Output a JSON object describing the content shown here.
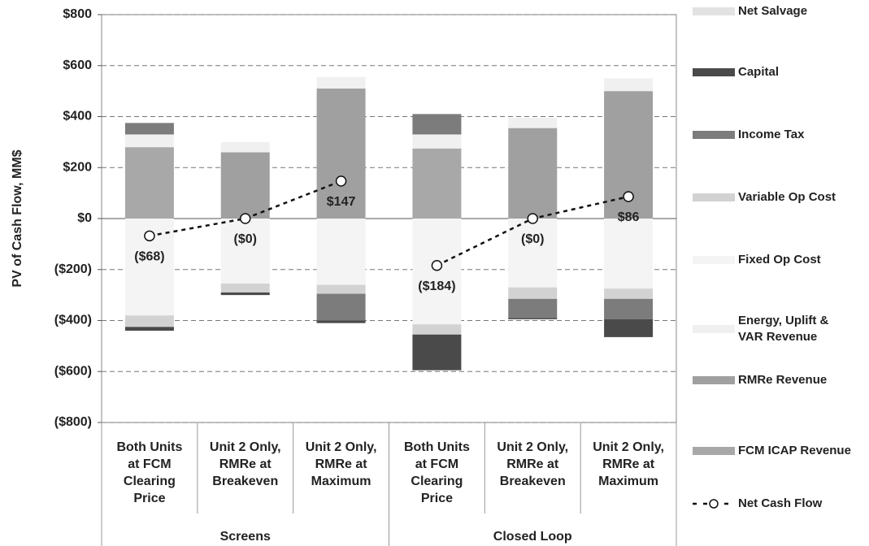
{
  "chart_data": {
    "type": "stacked-bar-line",
    "y_label": "PV of Cash Flow, MM$",
    "categories": [
      [
        "Both Units",
        "at FCM",
        "Clearing",
        "Price"
      ],
      [
        "Unit 2 Only,",
        "RMRe at",
        "Breakeven"
      ],
      [
        "Unit 2 Only,",
        "RMRe at",
        "Maximum"
      ],
      [
        "Both Units",
        "at FCM",
        "Clearing",
        "Price"
      ],
      [
        "Unit 2 Only,",
        "RMRe at",
        "Breakeven"
      ],
      [
        "Unit 2 Only,",
        "RMRe at",
        "Maximum"
      ]
    ],
    "groups": [
      "Screens",
      "Closed Loop"
    ],
    "ylim": [
      -800,
      800
    ],
    "yticks": [
      {
        "value": -800,
        "label": "($800)"
      },
      {
        "value": -600,
        "label": "($600)"
      },
      {
        "value": -400,
        "label": "($400)"
      },
      {
        "value": -200,
        "label": "($200)"
      },
      {
        "value": 0,
        "label": "$0"
      },
      {
        "value": 200,
        "label": "$200"
      },
      {
        "value": 400,
        "label": "$400"
      },
      {
        "value": 600,
        "label": "$600"
      },
      {
        "value": 800,
        "label": "$800"
      }
    ],
    "grid": true,
    "series": [
      {
        "name": "Net Salvage",
        "color": "#e2e2e2",
        "values": [
          0,
          0,
          0,
          0,
          0,
          0
        ]
      },
      {
        "name": "Capital",
        "color": "#4a4a4a",
        "values": [
          -15,
          -10,
          -10,
          -140,
          -5,
          -70
        ]
      },
      {
        "name": "Income Tax",
        "color": "#7c7c7c",
        "values": [
          45,
          0,
          -105,
          80,
          -75,
          -80
        ]
      },
      {
        "name": "Variable Op Cost",
        "color": "#d2d2d2",
        "values": [
          -45,
          -35,
          -35,
          -40,
          -45,
          -40
        ]
      },
      {
        "name": "Fixed Op Cost",
        "color": "#f4f4f4",
        "values": [
          -380,
          -255,
          -260,
          -415,
          -270,
          -275
        ]
      },
      {
        "name": "Energy, Uplift & VAR Revenue",
        "color": "#f0f0f0",
        "values": [
          50,
          40,
          45,
          55,
          40,
          50
        ]
      },
      {
        "name": "RMRe Revenue",
        "color": "#a0a0a0",
        "values": [
          0,
          260,
          510,
          0,
          355,
          500
        ]
      },
      {
        "name": "FCM ICAP Revenue",
        "color": "#a8a8a8",
        "values": [
          280,
          0,
          0,
          275,
          0,
          0
        ]
      }
    ],
    "line": {
      "name": "Net Cash Flow",
      "color": "#111111",
      "values": [
        -68,
        0,
        147,
        -184,
        0,
        86
      ],
      "value_labels": [
        "($68)",
        "($0)",
        "$147",
        "($184)",
        "($0)",
        "$86"
      ]
    }
  }
}
